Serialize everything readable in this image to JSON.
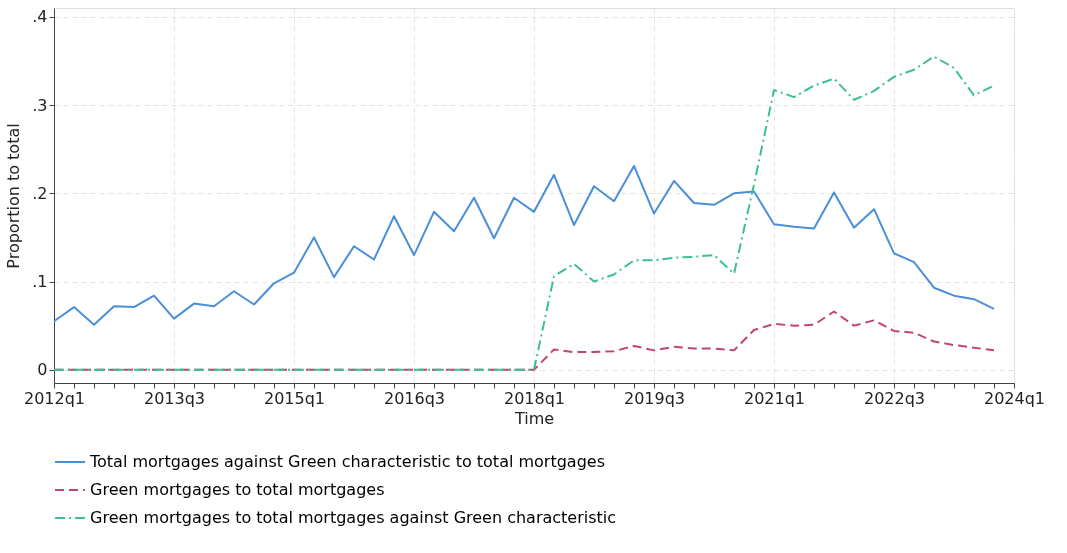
{
  "chart_data": {
    "type": "line",
    "xlabel": "Time",
    "ylabel": "Proportion to total",
    "categories": [
      "2012q1",
      null,
      null,
      null,
      null,
      null,
      "2013q3",
      null,
      null,
      null,
      null,
      null,
      "2015q1",
      null,
      null,
      null,
      null,
      null,
      "2016q3",
      null,
      null,
      null,
      null,
      null,
      "2018q1",
      null,
      null,
      null,
      null,
      null,
      "2019q3",
      null,
      null,
      null,
      null,
      null,
      "2021q1",
      null,
      null,
      null,
      null,
      null,
      "2022q3",
      null,
      null,
      null,
      null,
      null,
      "2024q1"
    ],
    "series": [
      {
        "name": "Total mortgages against Green characteristic to total mortgages",
        "color": "#4a8fd8",
        "line_style": "solid",
        "values": [
          0.055,
          0.071,
          0.051,
          0.072,
          0.071,
          0.084,
          0.058,
          0.075,
          0.072,
          0.089,
          0.074,
          0.098,
          0.11,
          0.15,
          0.105,
          0.14,
          0.125,
          0.174,
          0.13,
          0.179,
          0.157,
          0.195,
          0.149,
          0.195,
          0.179,
          0.221,
          0.164,
          0.208,
          0.191,
          0.231,
          0.177,
          0.214,
          0.189,
          0.187,
          0.2,
          0.202,
          0.165,
          0.162,
          0.16,
          0.201,
          0.161,
          0.182,
          0.132,
          0.122,
          0.093,
          0.084,
          0.08,
          0.069,
          null
        ]
      },
      {
        "name": "Green mortgages to total mortgages",
        "color": "#c2456e",
        "line_style": "dashed",
        "values": [
          0,
          0,
          0,
          0,
          0,
          0,
          0,
          0,
          0,
          0,
          0,
          0,
          0,
          0,
          0,
          0,
          0,
          0,
          0,
          0,
          0,
          0,
          0,
          0,
          0,
          0.023,
          0.02,
          0.02,
          0.021,
          0.027,
          0.022,
          0.026,
          0.024,
          0.024,
          0.022,
          0.045,
          0.052,
          0.05,
          0.051,
          0.066,
          0.05,
          0.056,
          0.044,
          0.042,
          0.032,
          0.028,
          0.025,
          0.022,
          null
        ]
      },
      {
        "name": "Green mortgages to total mortgages against Green characteristic",
        "color": "#3dbf8e",
        "line_style": "dashdot",
        "values": [
          0,
          0,
          0,
          0,
          0,
          0,
          0,
          0,
          0,
          0,
          0,
          0,
          0,
          0,
          0,
          0,
          0,
          0,
          0,
          0,
          0,
          0,
          0,
          0,
          0,
          0.106,
          0.12,
          0.1,
          0.108,
          0.124,
          0.124,
          0.127,
          0.128,
          0.13,
          0.109,
          0.21,
          0.317,
          0.309,
          0.322,
          0.33,
          0.306,
          0.316,
          0.332,
          0.34,
          0.355,
          0.342,
          0.311,
          0.322,
          null
        ]
      }
    ],
    "ylim": [
      -0.015,
      0.41
    ],
    "yticks": [
      {
        "value": 0,
        "label": "0"
      },
      {
        "value": 0.1,
        "label": ".1"
      },
      {
        "value": 0.2,
        "label": ".2"
      },
      {
        "value": 0.3,
        "label": ".3"
      },
      {
        "value": 0.4,
        "label": ".4"
      }
    ],
    "grid": true,
    "legend": "bottom",
    "marker": "none"
  }
}
